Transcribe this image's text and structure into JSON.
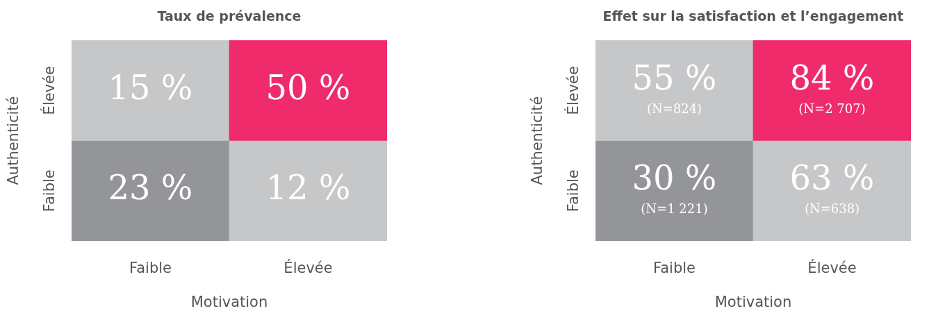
{
  "chart_data": [
    {
      "type": "heatmap",
      "title": "Taux de prévalence",
      "xlabel": "Motivation",
      "ylabel": "Authenticité",
      "categories": [
        "Faible",
        "Élevée"
      ],
      "y_categories": [
        "Élevée",
        "Faible"
      ],
      "cells": [
        [
          15,
          50
        ],
        [
          23,
          12
        ]
      ],
      "cell_labels": [
        [
          "15 %",
          "50 %"
        ],
        [
          "23 %",
          "12 %"
        ]
      ],
      "colors": [
        [
          "#c6c7c9",
          "#ef2b6b"
        ],
        [
          "#939598",
          "#c6c7c9"
        ]
      ]
    },
    {
      "type": "heatmap",
      "title": "Effet sur la satisfaction et l’engagement",
      "xlabel": "Motivation",
      "ylabel": "Authenticité",
      "categories": [
        "Faible",
        "Élevée"
      ],
      "y_categories": [
        "Élevée",
        "Faible"
      ],
      "cells": [
        [
          55,
          84
        ],
        [
          30,
          63
        ]
      ],
      "cell_labels": [
        [
          "55 %",
          "84 %"
        ],
        [
          "30 %",
          "63 %"
        ]
      ],
      "annotations": [
        "(N=824)",
        "(N=2 707)",
        "(N=1 221)",
        "(N=638)"
      ],
      "colors": [
        [
          "#c6c7c9",
          "#ef2b6b"
        ],
        [
          "#939598",
          "#c6c7c9"
        ]
      ]
    }
  ]
}
